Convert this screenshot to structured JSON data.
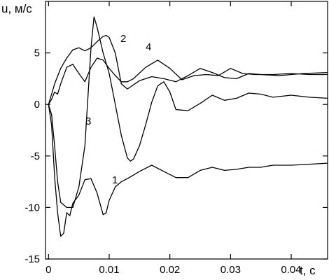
{
  "chart_data": {
    "type": "line",
    "xlabel": "t, с",
    "ylabel": "u, м/с",
    "xlim": [
      -0.0005,
      0.046
    ],
    "ylim": [
      -15,
      10
    ],
    "x_ticks": [
      0,
      0.01,
      0.02,
      0.03,
      0.04
    ],
    "x_tick_labels": [
      "0",
      "0.01",
      "0.02",
      "0.03",
      "0.04"
    ],
    "y_ticks": [
      -15,
      -10,
      -5,
      0,
      5
    ],
    "y_tick_labels": [
      "-15",
      "-10",
      "-5",
      "0",
      "5"
    ],
    "grid": false,
    "series": [
      {
        "name": "1",
        "x": [
          0,
          0.0005,
          0.001,
          0.0015,
          0.002,
          0.0025,
          0.003,
          0.0035,
          0.004,
          0.005,
          0.006,
          0.007,
          0.008,
          0.009,
          0.0095,
          0.01,
          0.011,
          0.012,
          0.013,
          0.015,
          0.017,
          0.019,
          0.021,
          0.023,
          0.025,
          0.027,
          0.029,
          0.031,
          0.033,
          0.035,
          0.037,
          0.04,
          0.043,
          0.046
        ],
        "values": [
          0,
          -2,
          -7,
          -10.5,
          -12.8,
          -12.5,
          -10.5,
          -10.8,
          -9.6,
          -8.8,
          -7.3,
          -7.2,
          -8.6,
          -10.7,
          -10.5,
          -9.3,
          -8,
          -7.5,
          -7.2,
          -6.5,
          -5.9,
          -6.5,
          -7.1,
          -7.1,
          -6.4,
          -6.1,
          -6.4,
          -6.3,
          -6.1,
          -6.1,
          -5.9,
          -5.9,
          -5.8,
          -5.7
        ]
      },
      {
        "name": "2",
        "x": [
          0,
          0.0005,
          0.001,
          0.002,
          0.003,
          0.004,
          0.005,
          0.006,
          0.007,
          0.008,
          0.009,
          0.0095,
          0.01,
          0.011,
          0.012,
          0.013,
          0.015,
          0.017,
          0.019,
          0.021,
          0.023,
          0.025,
          0.027,
          0.029,
          0.031,
          0.033,
          0.035,
          0.038,
          0.042,
          0.046
        ],
        "values": [
          0,
          1,
          2,
          3.5,
          4.5,
          5.3,
          5.5,
          5.2,
          5.5,
          6.1,
          6.6,
          6.7,
          6.5,
          5,
          2,
          1.5,
          2.3,
          2.7,
          2.5,
          2.2,
          2.8,
          3.5,
          3.1,
          2.6,
          2.5,
          3,
          2.9,
          2.8,
          3.0,
          3.1
        ]
      },
      {
        "name": "3",
        "x": [
          0,
          0.0005,
          0.001,
          0.0015,
          0.002,
          0.003,
          0.004,
          0.005,
          0.006,
          0.007,
          0.0075,
          0.008,
          0.009,
          0.01,
          0.011,
          0.012,
          0.013,
          0.0135,
          0.014,
          0.015,
          0.016,
          0.017,
          0.018,
          0.019,
          0.02,
          0.021,
          0.023,
          0.025,
          0.027,
          0.029,
          0.031,
          0.033,
          0.035,
          0.037,
          0.04,
          0.043,
          0.046
        ],
        "values": [
          0,
          -1,
          -4,
          -7.5,
          -9.5,
          -10,
          -10,
          -8,
          -4,
          5.5,
          8.5,
          7.5,
          5,
          3,
          0,
          -3,
          -5.2,
          -5.5,
          -5.3,
          -4,
          -2,
          0.2,
          1.8,
          2.2,
          1.2,
          -0.5,
          -0.6,
          0.1,
          0.9,
          0.4,
          0.6,
          1.1,
          1.0,
          0.7,
          0.9,
          0.7,
          0.6
        ]
      },
      {
        "name": "4",
        "x": [
          0,
          0.0005,
          0.001,
          0.0015,
          0.002,
          0.003,
          0.004,
          0.005,
          0.006,
          0.007,
          0.008,
          0.009,
          0.01,
          0.011,
          0.012,
          0.013,
          0.014,
          0.016,
          0.018,
          0.02,
          0.022,
          0.024,
          0.026,
          0.028,
          0.03,
          0.032,
          0.034,
          0.037,
          0.04,
          0.043,
          0.046
        ],
        "values": [
          0,
          0.5,
          1.2,
          1.0,
          2.0,
          3.6,
          3.9,
          3.0,
          2.2,
          3.6,
          4.5,
          4.3,
          3.5,
          2.8,
          2.2,
          2.2,
          2.5,
          3.6,
          4.3,
          3.5,
          2.4,
          2.8,
          2.9,
          2.8,
          3.5,
          3.0,
          2.9,
          2.9,
          3.0,
          2.9,
          2.9
        ]
      }
    ]
  }
}
